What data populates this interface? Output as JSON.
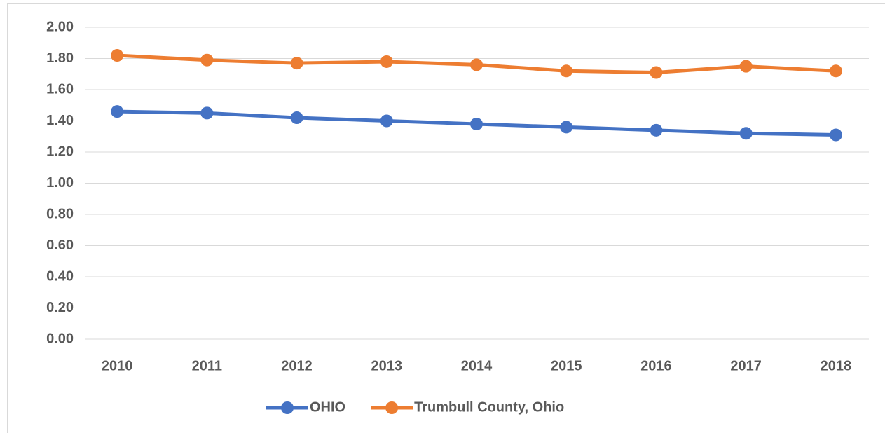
{
  "chart_data": {
    "type": "line",
    "categories": [
      "2010",
      "2011",
      "2012",
      "2013",
      "2014",
      "2015",
      "2016",
      "2017",
      "2018"
    ],
    "series": [
      {
        "name": "OHIO",
        "color": "#4472c4",
        "values": [
          1.46,
          1.45,
          1.42,
          1.4,
          1.38,
          1.36,
          1.34,
          1.32,
          1.31
        ]
      },
      {
        "name": "Trumbull County, Ohio",
        "color": "#ed7d31",
        "values": [
          1.82,
          1.79,
          1.77,
          1.78,
          1.76,
          1.72,
          1.71,
          1.75,
          1.72
        ]
      }
    ],
    "ylim": [
      0,
      2
    ],
    "yticks": [
      {
        "value": 0,
        "label": "0.00"
      },
      {
        "value": 0.2,
        "label": "0.20"
      },
      {
        "value": 0.4,
        "label": "0.40"
      },
      {
        "value": 0.6,
        "label": "0.60"
      },
      {
        "value": 0.8,
        "label": "0.80"
      },
      {
        "value": 1,
        "label": "1.00"
      },
      {
        "value": 1.2,
        "label": "1.20"
      },
      {
        "value": 1.4,
        "label": "1.40"
      },
      {
        "value": 1.6,
        "label": "1.60"
      },
      {
        "value": 1.8,
        "label": "1.80"
      },
      {
        "value": 2,
        "label": "2.00"
      }
    ],
    "grid": true,
    "legend": "bottom"
  }
}
